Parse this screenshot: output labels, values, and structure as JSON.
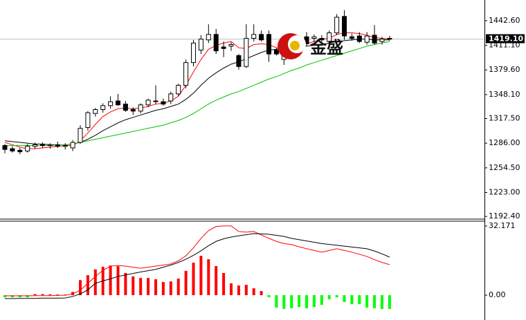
{
  "watermark": "金盛",
  "chart_data": [
    {
      "type": "candlestick",
      "ylim": [
        1189,
        1469
      ],
      "yticks": [
        {
          "value": 1442.6,
          "label": "1442.60"
        },
        {
          "value": 1411.1,
          "label": "1411.10"
        },
        {
          "value": 1379.6,
          "label": "1379.60"
        },
        {
          "value": 1348.1,
          "label": "1348.10"
        },
        {
          "value": 1317.5,
          "label": "1317.50"
        },
        {
          "value": 1286,
          "label": "1286.00"
        },
        {
          "value": 1254.5,
          "label": "1254.50"
        },
        {
          "value": 1223,
          "label": "1223.00"
        },
        {
          "value": 1192.4,
          "label": "1192.40"
        }
      ],
      "current_price": {
        "value": 1419.1,
        "label": "1419.10"
      },
      "up_color": "#ffffff",
      "down_color": "#000000",
      "open": [
        1283,
        1279,
        1277,
        1276,
        1282,
        1284,
        1283,
        1284,
        1282,
        1280,
        1287,
        1306,
        1324,
        1329,
        1334,
        1340,
        1336,
        1329,
        1327,
        1335,
        1340,
        1339,
        1340,
        1349,
        1360,
        1389,
        1405,
        1418,
        1425,
        1409,
        1410,
        1398,
        1384,
        1420,
        1425,
        1425,
        1405,
        1393,
        1412,
        1407,
        1422,
        1420,
        1420,
        1416,
        1427,
        1448,
        1422,
        1423,
        1415,
        1424,
        1416,
        1420
      ],
      "high": [
        1285,
        1282,
        1280,
        1285,
        1287,
        1287,
        1286,
        1288,
        1286,
        1290,
        1309,
        1327,
        1331,
        1337,
        1346,
        1349,
        1340,
        1332,
        1337,
        1343,
        1360,
        1343,
        1352,
        1362,
        1393,
        1418,
        1424,
        1438,
        1432,
        1416,
        1415,
        1400,
        1438,
        1438,
        1430,
        1430,
        1408,
        1412,
        1418,
        1424,
        1428,
        1425,
        1424,
        1430,
        1451,
        1456,
        1426,
        1428,
        1428,
        1437,
        1422,
        1423
      ],
      "low": [
        1273,
        1274,
        1272,
        1274,
        1279,
        1280,
        1279,
        1280,
        1278,
        1276,
        1285,
        1302,
        1320,
        1325,
        1330,
        1334,
        1326,
        1322,
        1324,
        1332,
        1336,
        1334,
        1336,
        1346,
        1356,
        1384,
        1400,
        1414,
        1400,
        1396,
        1404,
        1380,
        1382,
        1416,
        1416,
        1390,
        1398,
        1386,
        1408,
        1404,
        1410,
        1415,
        1414,
        1412,
        1424,
        1418,
        1417,
        1414,
        1412,
        1412,
        1412,
        1417
      ],
      "close": [
        1278,
        1276,
        1275,
        1282,
        1284,
        1283,
        1284,
        1282,
        1283,
        1287,
        1305,
        1325,
        1329,
        1334,
        1339,
        1335,
        1328,
        1327,
        1335,
        1341,
        1340,
        1336,
        1349,
        1360,
        1389,
        1414,
        1419,
        1425,
        1404,
        1407,
        1412,
        1384,
        1420,
        1425,
        1418,
        1400,
        1400,
        1405,
        1414,
        1422,
        1413,
        1422,
        1418,
        1427,
        1447,
        1423,
        1420,
        1416,
        1423,
        1414,
        1419,
        1419
      ],
      "overlays": [
        {
          "color": "#ff0000",
          "values": [
            1287,
            1284,
            1281,
            1279,
            1279,
            1280,
            1281,
            1282,
            1283,
            1283,
            1289,
            1299,
            1310,
            1320,
            1326,
            1330,
            1331,
            1330,
            1331,
            1333,
            1336,
            1337,
            1340,
            1346,
            1360,
            1377,
            1393,
            1406,
            1411,
            1414,
            1416,
            1408,
            1407,
            1412,
            1413,
            1412,
            1408,
            1405,
            1408,
            1412,
            1413,
            1416,
            1419,
            1420,
            1425,
            1427,
            1427,
            1426,
            1424,
            1421,
            1420,
            1419
          ]
        },
        {
          "color": "#000000",
          "values": [
            1289,
            1288,
            1287,
            1286,
            1285,
            1285,
            1284,
            1284,
            1284,
            1285,
            1287,
            1291,
            1296,
            1302,
            1307,
            1312,
            1316,
            1319,
            1322,
            1325,
            1328,
            1330,
            1333,
            1336,
            1342,
            1350,
            1360,
            1369,
            1376,
            1382,
            1387,
            1390,
            1394,
            1398,
            1402,
            1405,
            1406,
            1407,
            1408,
            1409,
            1410,
            1411,
            1412,
            1414,
            1416,
            1417,
            1418,
            1419,
            1419,
            1418,
            1418,
            1418
          ]
        },
        {
          "color": "#00c000",
          "values": [
            1283,
            1283,
            1283,
            1283,
            1283,
            1283,
            1283,
            1284,
            1284,
            1285,
            1287,
            1289,
            1291,
            1293,
            1295,
            1297,
            1299,
            1301,
            1303,
            1305,
            1307,
            1309,
            1312,
            1315,
            1319,
            1324,
            1330,
            1336,
            1341,
            1345,
            1349,
            1352,
            1356,
            1360,
            1364,
            1368,
            1371,
            1375,
            1379,
            1382,
            1386,
            1389,
            1392,
            1395,
            1398,
            1401,
            1404,
            1407,
            1410,
            1412,
            1414,
            1416
          ]
        }
      ]
    },
    {
      "type": "macd",
      "ylim": [
        -10.9,
        34.4
      ],
      "yticks": [
        32.171,
        {
          "value": 0,
          "label": "0.00"
        }
      ],
      "up_color": "#ff0000",
      "down_color": "#00ff00",
      "histogram": [
        -1,
        -1,
        -1,
        -1,
        0.5,
        0.5,
        0.4,
        0.3,
        0.3,
        1.5,
        7,
        9.3,
        12,
        13.2,
        13.8,
        13.5,
        10.3,
        8.7,
        8,
        8,
        7.4,
        6.1,
        6.4,
        7.7,
        11.3,
        15.1,
        18.3,
        16.7,
        13.5,
        10.3,
        5.5,
        4.5,
        4.8,
        3.2,
        1.9,
        -1,
        -5.8,
        -6.4,
        -6.1,
        -5.5,
        -6.1,
        -5.5,
        -4.5,
        -1.9,
        -1,
        -3.2,
        -4.2,
        -4.2,
        -5.8,
        -6.1,
        -6.4,
        -6.4
      ],
      "lines": [
        {
          "color": "#ff0000",
          "values": [
            -0.3,
            -0.3,
            -0.3,
            -0.3,
            -0.2,
            -0.2,
            -0.2,
            -0.1,
            0,
            0.6,
            2.3,
            5.5,
            8.7,
            11.5,
            13.5,
            13.8,
            13.5,
            13,
            12.5,
            13,
            13.5,
            14,
            14.5,
            16,
            18.3,
            22,
            26.4,
            30,
            31.9,
            32.2,
            32.2,
            29.6,
            29.3,
            29.6,
            28,
            26.4,
            25,
            24,
            23.5,
            22.5,
            21.6,
            20.8,
            20,
            20.8,
            21.6,
            20.8,
            20,
            19,
            18,
            16.5,
            15.2,
            14.2
          ]
        },
        {
          "color": "#000000",
          "values": [
            -1.6,
            -1.6,
            -1.5,
            -1.5,
            -1.5,
            -1.4,
            -1.4,
            -1.4,
            -1.3,
            -0.6,
            0.6,
            2.5,
            5.5,
            6.6,
            7.6,
            8.7,
            9.4,
            10.1,
            10.8,
            11.4,
            12,
            13,
            14,
            15.2,
            16.7,
            18.5,
            20.6,
            23,
            25,
            26.2,
            27,
            27.6,
            28.1,
            28.6,
            28.5,
            28.3,
            27.8,
            27.3,
            26.4,
            25.8,
            25.2,
            24.6,
            24,
            23.6,
            23.2,
            22.8,
            22.4,
            22,
            21.6,
            20.5,
            19.2,
            17.7
          ]
        }
      ]
    }
  ]
}
